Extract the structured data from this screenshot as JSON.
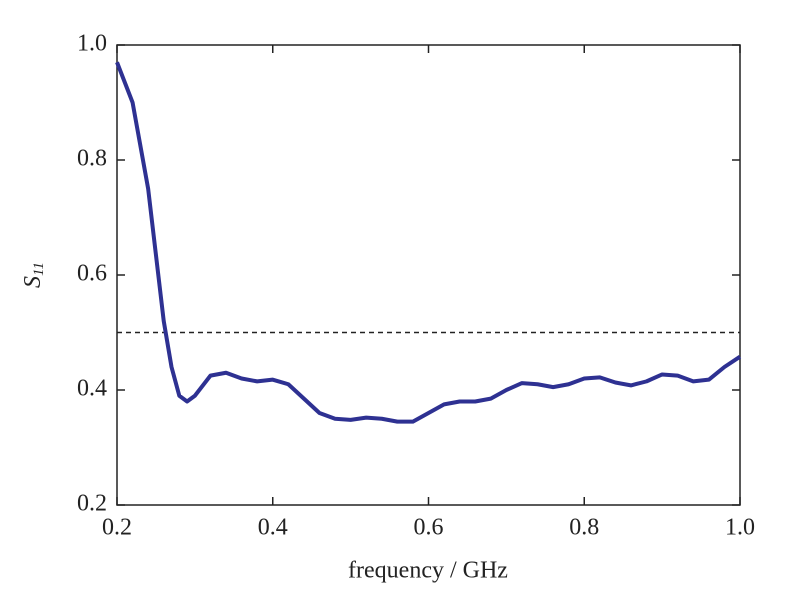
{
  "chart_data": {
    "type": "line",
    "xlabel": "frequency / GHz",
    "ylabel": "S",
    "ylabel_subscript": "11",
    "x": [
      0.2,
      0.22,
      0.24,
      0.26,
      0.27,
      0.28,
      0.29,
      0.3,
      0.32,
      0.34,
      0.36,
      0.38,
      0.4,
      0.42,
      0.44,
      0.46,
      0.48,
      0.5,
      0.52,
      0.54,
      0.56,
      0.58,
      0.6,
      0.62,
      0.64,
      0.66,
      0.68,
      0.7,
      0.72,
      0.74,
      0.76,
      0.78,
      0.8,
      0.82,
      0.84,
      0.86,
      0.88,
      0.9,
      0.92,
      0.94,
      0.96,
      0.98,
      1.0
    ],
    "series": [
      {
        "color": "#2e3192",
        "values": [
          0.97,
          0.9,
          0.75,
          0.52,
          0.44,
          0.39,
          0.38,
          0.39,
          0.425,
          0.43,
          0.42,
          0.415,
          0.418,
          0.41,
          0.385,
          0.36,
          0.35,
          0.348,
          0.352,
          0.35,
          0.345,
          0.345,
          0.36,
          0.375,
          0.38,
          0.38,
          0.385,
          0.4,
          0.412,
          0.41,
          0.405,
          0.41,
          0.42,
          0.422,
          0.413,
          0.408,
          0.415,
          0.427,
          0.425,
          0.415,
          0.418,
          0.44,
          0.458
        ]
      }
    ],
    "threshold": 0.5,
    "xlim": [
      0.2,
      1.0
    ],
    "ylim": [
      0.2,
      1.0
    ],
    "xticks": [
      0.2,
      0.4,
      0.6,
      0.8,
      {
        "value": 1.0,
        "label": "1.0"
      }
    ],
    "yticks": [
      0.2,
      0.4,
      0.6,
      0.8,
      {
        "value": 1.0,
        "label": "1.0"
      }
    ]
  }
}
